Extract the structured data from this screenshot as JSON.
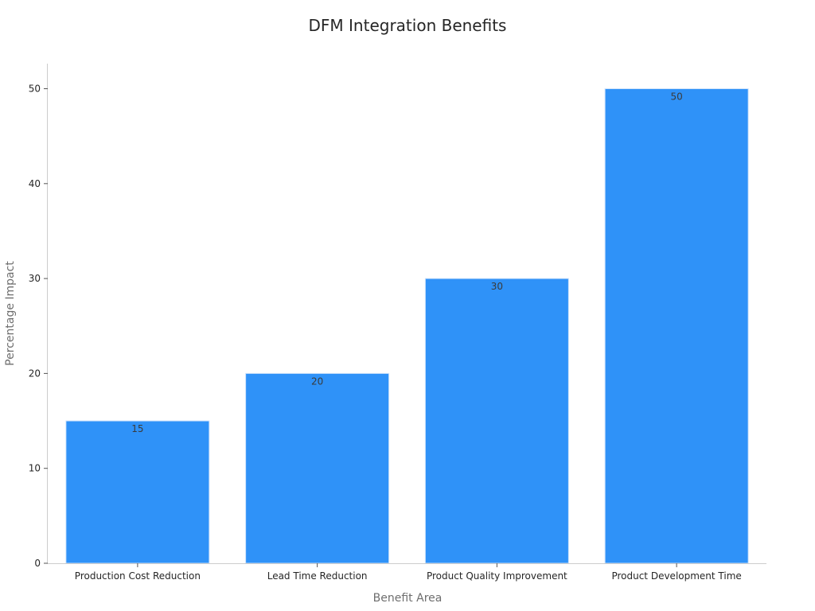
{
  "chart_data": {
    "type": "bar",
    "title": "DFM Integration Benefits",
    "xlabel": "Benefit Area",
    "ylabel": "Percentage Impact",
    "categories": [
      "Production Cost Reduction",
      "Lead Time Reduction",
      "Product Quality Improvement",
      "Product Development Time"
    ],
    "values": [
      15,
      20,
      30,
      50
    ],
    "data_labels": [
      "15",
      "20",
      "30",
      "50"
    ],
    "ylim": [
      0,
      52.5
    ],
    "yticks": [
      0,
      10,
      20,
      30,
      40,
      50
    ],
    "ytick_labels": [
      "0",
      "10",
      "20",
      "30",
      "40",
      "50"
    ],
    "grid": false,
    "legend": "none",
    "bar_color": "#2f92f8",
    "bar_edge_color": "#cfe3fb"
  }
}
